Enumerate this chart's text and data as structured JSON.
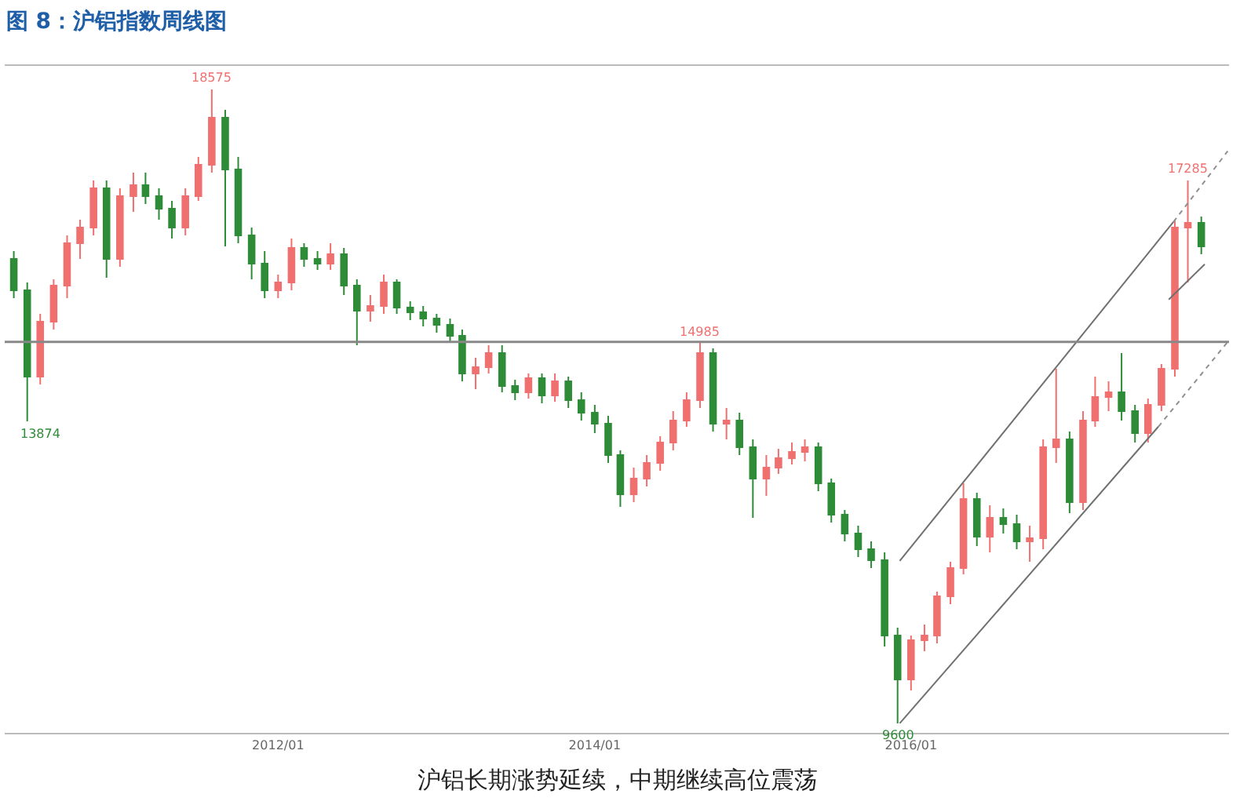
{
  "chart_data": {
    "type": "candlestick",
    "title": "图 8：沪铝指数周线图",
    "x": [
      "2010-05",
      "2010-06",
      "2010-07",
      "2010-08",
      "2010-09",
      "2010-10",
      "2010-11",
      "2010-12",
      "2011-01",
      "2011-02",
      "2011-03",
      "2011-04",
      "2011-05",
      "2011-06",
      "2011-07",
      "2011-08",
      "2011-09",
      "2011-10",
      "2011-11",
      "2011-12",
      "2012-01",
      "2012-02",
      "2012-03",
      "2012-04",
      "2012-05",
      "2012-06",
      "2012-07",
      "2012-08",
      "2012-09",
      "2012-10",
      "2012-11",
      "2012-12",
      "2013-01",
      "2013-02",
      "2013-03",
      "2013-04",
      "2013-05",
      "2013-06",
      "2013-07",
      "2013-08",
      "2013-09",
      "2013-10",
      "2013-11",
      "2013-12",
      "2014-01",
      "2014-02",
      "2014-03",
      "2014-04",
      "2014-05",
      "2014-06",
      "2014-07",
      "2014-08",
      "2014-09",
      "2014-10",
      "2014-11",
      "2014-12",
      "2015-01",
      "2015-02",
      "2015-03",
      "2015-04",
      "2015-05",
      "2015-06",
      "2015-07",
      "2015-08",
      "2015-09",
      "2015-10",
      "2015-11",
      "2015-12",
      "2016-01",
      "2016-02",
      "2016-03",
      "2016-04",
      "2016-05",
      "2016-06",
      "2016-07",
      "2016-08",
      "2016-09",
      "2016-10",
      "2016-11",
      "2016-12",
      "2017-01",
      "2017-02",
      "2017-03",
      "2017-04",
      "2017-05",
      "2017-06",
      "2017-07",
      "2017-08",
      "2017-09",
      "2017-10",
      "2017-11"
    ],
    "ohlc": [
      [
        16175,
        16286,
        15620,
        15731
      ],
      [
        15731,
        15842,
        13874,
        14509
      ],
      [
        14509,
        15397,
        14397,
        15286
      ],
      [
        15286,
        15886,
        15175,
        15797
      ],
      [
        15797,
        16508,
        15620,
        16397
      ],
      [
        16397,
        16731,
        16175,
        16620
      ],
      [
        16620,
        17286,
        16508,
        17175
      ],
      [
        17175,
        17286,
        15908,
        16175
      ],
      [
        16175,
        17175,
        16064,
        17064
      ],
      [
        17064,
        17397,
        16842,
        17220
      ],
      [
        17220,
        17397,
        16953,
        17064
      ],
      [
        17064,
        17175,
        16731,
        16886
      ],
      [
        16886,
        16997,
        16464,
        16620
      ],
      [
        16620,
        17175,
        16508,
        17064
      ],
      [
        17064,
        17620,
        16997,
        17508
      ],
      [
        17508,
        18575,
        17397,
        18175
      ],
      [
        18175,
        18286,
        16353,
        17442
      ],
      [
        17442,
        17620,
        16397,
        16508
      ],
      [
        16508,
        16620,
        15886,
        16108
      ],
      [
        16108,
        16286,
        15620,
        15731
      ],
      [
        15731,
        15953,
        15620,
        15842
      ],
      [
        15842,
        16464,
        15731,
        16331
      ],
      [
        16331,
        16397,
        16064,
        16175
      ],
      [
        16175,
        16286,
        16020,
        16108
      ],
      [
        16108,
        16397,
        16020,
        16242
      ],
      [
        16242,
        16331,
        15664,
        15797
      ],
      [
        15797,
        15886,
        14953,
        15442
      ],
      [
        15442,
        15664,
        15286,
        15508
      ],
      [
        15508,
        15953,
        15397,
        15842
      ],
      [
        15842,
        15886,
        15397,
        15486
      ],
      [
        15486,
        15575,
        15309,
        15420
      ],
      [
        15420,
        15508,
        15220,
        15331
      ],
      [
        15331,
        15397,
        15131,
        15242
      ],
      [
        15242,
        15331,
        14997,
        15086
      ],
      [
        15086,
        15175,
        14442,
        14553
      ],
      [
        14553,
        14775,
        14331,
        14642
      ],
      [
        14642,
        14953,
        14553,
        14842
      ],
      [
        14842,
        14953,
        14286,
        14375
      ],
      [
        14375,
        14464,
        14175,
        14286
      ],
      [
        14286,
        14553,
        14197,
        14486
      ],
      [
        14486,
        14553,
        14131,
        14242
      ],
      [
        14242,
        14553,
        14153,
        14442
      ],
      [
        14442,
        14509,
        14064,
        14175
      ],
      [
        14175,
        14286,
        13886,
        13998
      ],
      [
        13998,
        14108,
        13709,
        13842
      ],
      [
        13842,
        13953,
        13286,
        13397
      ],
      [
        13397,
        13464,
        12665,
        12842
      ],
      [
        12842,
        13220,
        12731,
        13064
      ],
      [
        13064,
        13397,
        12953,
        13286
      ],
      [
        13286,
        13664,
        13175,
        13575
      ],
      [
        13575,
        14020,
        13464,
        13886
      ],
      [
        13886,
        14286,
        13798,
        14175
      ],
      [
        14175,
        14985,
        14064,
        14842
      ],
      [
        14842,
        14909,
        13731,
        13842
      ],
      [
        13842,
        14064,
        13620,
        13886
      ],
      [
        13886,
        13998,
        13397,
        13509
      ],
      [
        13509,
        13620,
        12509,
        13064
      ],
      [
        13064,
        13397,
        12820,
        13220
      ],
      [
        13220,
        13486,
        13131,
        13353
      ],
      [
        13353,
        13575,
        13264,
        13442
      ],
      [
        13442,
        13620,
        13309,
        13509
      ],
      [
        13509,
        13575,
        12887,
        12998
      ],
      [
        12998,
        13064,
        12442,
        12553
      ],
      [
        12553,
        12620,
        12176,
        12287
      ],
      [
        12287,
        12398,
        11954,
        12065
      ],
      [
        12065,
        12176,
        11798,
        11909
      ],
      [
        11909,
        12020,
        10687,
        10842
      ],
      [
        10842,
        10954,
        9600,
        10220
      ],
      [
        10220,
        10842,
        10065,
        10776
      ],
      [
        10776,
        10998,
        10620,
        10842
      ],
      [
        10842,
        11465,
        10731,
        11398
      ],
      [
        11398,
        11887,
        11287,
        11798
      ],
      [
        11798,
        12998,
        11709,
        12775
      ],
      [
        12775,
        12864,
        12109,
        12242
      ],
      [
        12242,
        12687,
        12020,
        12509
      ],
      [
        12509,
        12642,
        12287,
        12420
      ],
      [
        12420,
        12553,
        12065,
        12176
      ],
      [
        12176,
        12398,
        11887,
        12220
      ],
      [
        12220,
        13620,
        12065,
        13509
      ],
      [
        13509,
        14620,
        13286,
        13620
      ],
      [
        13620,
        13731,
        12576,
        12731
      ],
      [
        12731,
        14020,
        12620,
        13886
      ],
      [
        13886,
        14509,
        13798,
        14220
      ],
      [
        14220,
        14442,
        14020,
        14286
      ],
      [
        14286,
        14842,
        13886,
        14020
      ],
      [
        14020,
        14108,
        13575,
        13709
      ],
      [
        13709,
        14197,
        13575,
        14108
      ],
      [
        14108,
        14686,
        14020,
        14620
      ],
      [
        14620,
        16731,
        14509,
        16620
      ],
      [
        16620,
        17285,
        15842,
        16686
      ],
      [
        16686,
        16775,
        16242,
        16353
      ]
    ],
    "colors": [
      "#2e8b37",
      "#2e8b37",
      "#f07070",
      "#f07070",
      "#f07070",
      "#f07070",
      "#f07070",
      "#2e8b37",
      "#f07070",
      "#f07070",
      "#2e8b37",
      "#2e8b37",
      "#2e8b37",
      "#f07070",
      "#f07070",
      "#f07070",
      "#2e8b37",
      "#2e8b37",
      "#2e8b37",
      "#2e8b37",
      "#f07070",
      "#f07070",
      "#2e8b37",
      "#2e8b37",
      "#f07070",
      "#2e8b37",
      "#2e8b37",
      "#f07070",
      "#f07070",
      "#2e8b37",
      "#2e8b37",
      "#2e8b37",
      "#2e8b37",
      "#2e8b37",
      "#2e8b37",
      "#f07070",
      "#f07070",
      "#2e8b37",
      "#2e8b37",
      "#f07070",
      "#2e8b37",
      "#f07070",
      "#2e8b37",
      "#2e8b37",
      "#2e8b37",
      "#2e8b37",
      "#2e8b37",
      "#f07070",
      "#f07070",
      "#f07070",
      "#f07070",
      "#f07070",
      "#f07070",
      "#2e8b37",
      "#f07070",
      "#2e8b37",
      "#2e8b37",
      "#f07070",
      "#f07070",
      "#f07070",
      "#f07070",
      "#2e8b37",
      "#2e8b37",
      "#2e8b37",
      "#2e8b37",
      "#2e8b37",
      "#2e8b37",
      "#2e8b37",
      "#f07070",
      "#f07070",
      "#f07070",
      "#f07070",
      "#f07070",
      "#2e8b37",
      "#f07070",
      "#2e8b37",
      "#2e8b37",
      "#f07070",
      "#f07070",
      "#f07070",
      "#2e8b37",
      "#f07070",
      "#f07070",
      "#f07070",
      "#2e8b37",
      "#2e8b37",
      "#f07070",
      "#f07070",
      "#f07070",
      "#f07070",
      "#2e8b37"
    ],
    "series": [
      {
        "type": "line",
        "color": "#707070",
        "line_style": "solid",
        "x": [
          "2015-12-06",
          "2017-08-29"
        ],
        "values": [
          11900,
          16700
        ]
      },
      {
        "type": "line",
        "color": "#909090",
        "line_style": "dotted",
        "x": [
          "2017-08-29",
          "2018-01-01"
        ],
        "values": [
          16700,
          17700
        ]
      },
      {
        "type": "line",
        "color": "#707070",
        "line_style": "solid",
        "x": [
          "2015-12-06",
          "2017-07-25"
        ],
        "values": [
          9600,
          13800
        ]
      },
      {
        "type": "line",
        "color": "#909090",
        "line_style": "dotted",
        "x": [
          "2017-07-25",
          "2018-01-01"
        ],
        "values": [
          13800,
          15000
        ]
      },
      {
        "type": "line",
        "color": "#707070",
        "line_style": "solid",
        "x": [
          "2017-08-18",
          "2017-11-09"
        ],
        "values": [
          15600,
          16100
        ]
      }
    ],
    "ref_lines": [
      {
        "axis": "y",
        "value": 15000,
        "color": "#888888"
      }
    ],
    "annotations": [
      {
        "text": "18575",
        "x": "2011-08",
        "y": 18575
      },
      {
        "text": "13874",
        "x": "2010-06",
        "y": 13874
      },
      {
        "text": "14985",
        "x": "2014-09",
        "y": 14985
      },
      {
        "text": "9600",
        "x": "2015-12",
        "y": 9600
      },
      {
        "text": "17285",
        "x": "2017-10",
        "y": 17285
      },
      "沪铝长期涨势延续，中期继续高位震荡"
    ],
    "xlim": [
      "2010-04-10",
      "2018-01-04"
    ],
    "xticks": [
      {
        "value": "2012-01-01",
        "label": "2012/01"
      },
      {
        "value": "2014-01-01",
        "label": "2014/01"
      },
      {
        "value": "2016-01-01",
        "label": "2016/01"
      }
    ],
    "tick_labels": "x"
  }
}
